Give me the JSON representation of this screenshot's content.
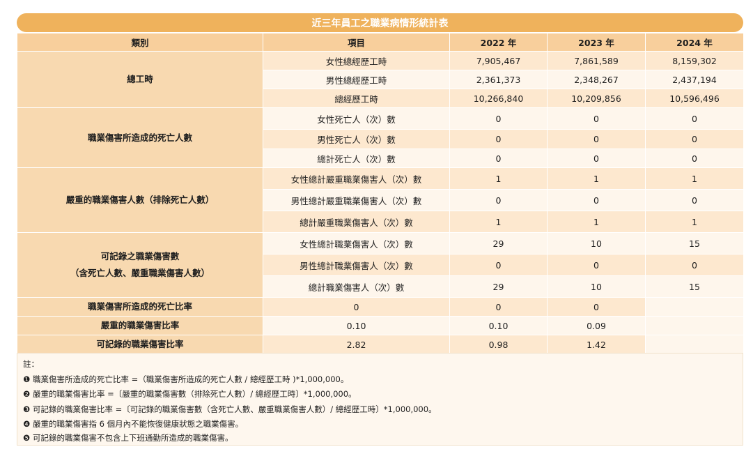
{
  "title": "近三年員工之職業病情形統計表",
  "headers": {
    "category": "類別",
    "item": "項目",
    "years": [
      "2022 年",
      "2023 年",
      "2024 年"
    ]
  },
  "groups": [
    {
      "category": "總工時",
      "rows": [
        {
          "item": "女性總經歷工時",
          "values": [
            "7,905,467",
            "7,861,589",
            "8,159,302"
          ]
        },
        {
          "item": "男性總經歷工時",
          "values": [
            "2,361,373",
            "2,348,267",
            "2,437,194"
          ]
        },
        {
          "item": "總經歷工時",
          "values": [
            "10,266,840",
            "10,209,856",
            "10,596,496"
          ]
        }
      ]
    },
    {
      "category": "職業傷害所造成的死亡人數",
      "rows": [
        {
          "item": "女性死亡人（次）數",
          "values": [
            "0",
            "0",
            "0"
          ]
        },
        {
          "item": "男性死亡人（次）數",
          "values": [
            "0",
            "0",
            "0"
          ]
        },
        {
          "item": "總計死亡人（次）數",
          "values": [
            "0",
            "0",
            "0"
          ]
        }
      ]
    },
    {
      "category": "嚴重的職業傷害人數（排除死亡人數）",
      "rows": [
        {
          "item": "女性總計嚴重職業傷害人（次）數",
          "values": [
            "1",
            "1",
            "1"
          ]
        },
        {
          "item": "男性總計嚴重職業傷害人（次）數",
          "values": [
            "0",
            "0",
            "0"
          ]
        },
        {
          "item": "總計嚴重職業傷害人（次）數",
          "values": [
            "1",
            "1",
            "1"
          ]
        }
      ]
    },
    {
      "category_line1": "可記錄之職業傷害數",
      "category_line2": "（含死亡人數、嚴重職業傷害人數）",
      "rows": [
        {
          "item": "女性總計職業傷害人（次）數",
          "values": [
            "29",
            "10",
            "15"
          ]
        },
        {
          "item": "男性總計職業傷害人（次）數",
          "values": [
            "0",
            "0",
            "0"
          ]
        },
        {
          "item": "總計職業傷害人（次）數",
          "values": [
            "29",
            "10",
            "15"
          ]
        }
      ]
    }
  ],
  "rates": [
    {
      "category": "職業傷害所造成的死亡比率",
      "values": [
        "0",
        "0",
        "0",
        ""
      ]
    },
    {
      "category": "嚴重的職業傷害比率",
      "values": [
        "0.10",
        "0.10",
        "0.09",
        ""
      ]
    },
    {
      "category": "可記錄的職業傷害比率",
      "values": [
        "2.82",
        "0.98",
        "1.42",
        ""
      ]
    }
  ],
  "notes": {
    "label": "註：",
    "items": [
      "❶ 職業傷害所造成的死亡比率 =（職業傷害所造成的死亡人數 / 總經歷工時 )*1,000,000。",
      "❷ 嚴重的職業傷害比率 =〔嚴重的職業傷害數（排除死亡人數）/ 總經歷工時〕*1,000,000。",
      "❸ 可記錄的職業傷害比率 =〔可記錄的職業傷害數（含死亡人數、嚴重職業傷害人數）/ 總經歷工時〕*1,000,000。",
      "❹ 嚴重的職業傷害指 6 個月內不能恢復健康狀態之職業傷害。",
      "❺ 可記錄的職業傷害不包含上下班通勤所造成的職業傷害。"
    ]
  }
}
